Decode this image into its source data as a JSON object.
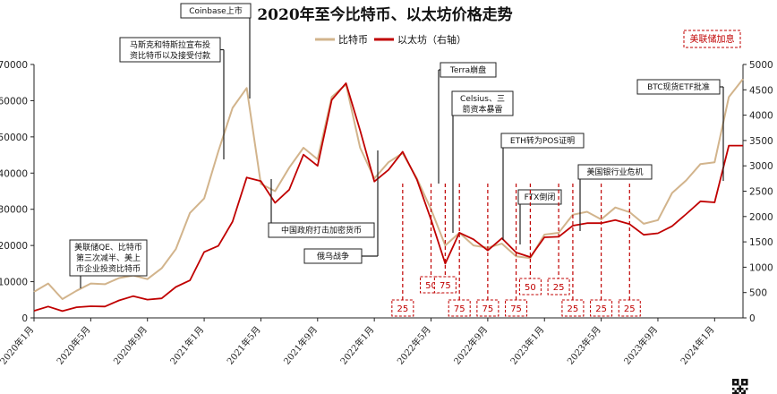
{
  "chart_data": {
    "type": "line",
    "title": "2020年至今比特币、以太坊价格走势",
    "x_range": [
      "2020-01",
      "2024-03"
    ],
    "x_tick_labels": [
      "2020年1月",
      "2020年5月",
      "2020年9月",
      "2021年1月",
      "2021年5月",
      "2021年9月",
      "2022年1月",
      "2022年5月",
      "2022年9月",
      "2023年1月",
      "2023年5月",
      "2023年9月",
      "2024年1月"
    ],
    "y_left": {
      "range": [
        0,
        70000
      ],
      "ticks": [
        0,
        10000,
        20000,
        30000,
        40000,
        50000,
        60000,
        70000
      ]
    },
    "y_right": {
      "range": [
        0,
        5000
      ],
      "ticks": [
        0,
        500,
        1000,
        1500,
        2000,
        2500,
        3000,
        3500,
        4000,
        4500,
        5000
      ]
    },
    "legend": {
      "placement": "top",
      "rate_hike_label": "美联储加息"
    },
    "series": [
      {
        "name": "比特币",
        "axis": "left",
        "color": "#d2b48c",
        "points": [
          [
            "2020-01",
            7200
          ],
          [
            "2020-02",
            9500
          ],
          [
            "2020-03",
            5200
          ],
          [
            "2020-04",
            7500
          ],
          [
            "2020-05",
            9500
          ],
          [
            "2020-06",
            9300
          ],
          [
            "2020-07",
            11000
          ],
          [
            "2020-08",
            11700
          ],
          [
            "2020-09",
            10700
          ],
          [
            "2020-10",
            13700
          ],
          [
            "2020-11",
            19000
          ],
          [
            "2020-12",
            29000
          ],
          [
            "2021-01",
            33000
          ],
          [
            "2021-02",
            46000
          ],
          [
            "2021-03",
            58000
          ],
          [
            "2021-04",
            63500
          ],
          [
            "2021-05",
            37000
          ],
          [
            "2021-06",
            35000
          ],
          [
            "2021-07",
            41500
          ],
          [
            "2021-08",
            47000
          ],
          [
            "2021-09",
            43800
          ],
          [
            "2021-10",
            61000
          ],
          [
            "2021-11",
            64500
          ],
          [
            "2021-12",
            47000
          ],
          [
            "2022-01",
            38500
          ],
          [
            "2022-02",
            43000
          ],
          [
            "2022-03",
            45500
          ],
          [
            "2022-04",
            38500
          ],
          [
            "2022-05",
            30000
          ],
          [
            "2022-06",
            20000
          ],
          [
            "2022-07",
            23500
          ],
          [
            "2022-08",
            20000
          ],
          [
            "2022-09",
            19400
          ],
          [
            "2022-10",
            20500
          ],
          [
            "2022-11",
            17000
          ],
          [
            "2022-12",
            16500
          ],
          [
            "2023-01",
            23000
          ],
          [
            "2023-02",
            23500
          ],
          [
            "2023-03",
            28500
          ],
          [
            "2023-04",
            29300
          ],
          [
            "2023-05",
            27200
          ],
          [
            "2023-06",
            30500
          ],
          [
            "2023-07",
            29200
          ],
          [
            "2023-08",
            26000
          ],
          [
            "2023-09",
            27000
          ],
          [
            "2023-10",
            34500
          ],
          [
            "2023-11",
            38000
          ],
          [
            "2023-12",
            42500
          ],
          [
            "2024-01",
            43000
          ],
          [
            "2024-02",
            61000
          ],
          [
            "2024-03",
            66000
          ]
        ]
      },
      {
        "name": "以太坊（右轴）",
        "axis": "right",
        "color": "#c00000",
        "points": [
          [
            "2020-01",
            140
          ],
          [
            "2020-02",
            225
          ],
          [
            "2020-03",
            135
          ],
          [
            "2020-04",
            210
          ],
          [
            "2020-05",
            230
          ],
          [
            "2020-06",
            225
          ],
          [
            "2020-07",
            345
          ],
          [
            "2020-08",
            430
          ],
          [
            "2020-09",
            360
          ],
          [
            "2020-10",
            385
          ],
          [
            "2020-11",
            610
          ],
          [
            "2020-12",
            740
          ],
          [
            "2021-01",
            1300
          ],
          [
            "2021-02",
            1420
          ],
          [
            "2021-03",
            1900
          ],
          [
            "2021-04",
            2770
          ],
          [
            "2021-05",
            2700
          ],
          [
            "2021-06",
            2270
          ],
          [
            "2021-07",
            2530
          ],
          [
            "2021-08",
            3220
          ],
          [
            "2021-09",
            3000
          ],
          [
            "2021-10",
            4300
          ],
          [
            "2021-11",
            4630
          ],
          [
            "2021-12",
            3700
          ],
          [
            "2022-01",
            2690
          ],
          [
            "2022-02",
            2920
          ],
          [
            "2022-03",
            3280
          ],
          [
            "2022-04",
            2730
          ],
          [
            "2022-05",
            1940
          ],
          [
            "2022-06",
            1070
          ],
          [
            "2022-07",
            1680
          ],
          [
            "2022-08",
            1550
          ],
          [
            "2022-09",
            1330
          ],
          [
            "2022-10",
            1570
          ],
          [
            "2022-11",
            1290
          ],
          [
            "2022-12",
            1200
          ],
          [
            "2023-01",
            1590
          ],
          [
            "2023-02",
            1600
          ],
          [
            "2023-03",
            1820
          ],
          [
            "2023-04",
            1870
          ],
          [
            "2023-05",
            1870
          ],
          [
            "2023-06",
            1930
          ],
          [
            "2023-07",
            1850
          ],
          [
            "2023-08",
            1640
          ],
          [
            "2023-09",
            1670
          ],
          [
            "2023-10",
            1810
          ],
          [
            "2023-11",
            2050
          ],
          [
            "2023-12",
            2300
          ],
          [
            "2024-01",
            2280
          ],
          [
            "2024-02",
            3400
          ],
          [
            "2024-03",
            3400
          ]
        ]
      }
    ],
    "annotations": [
      {
        "name": "ann-fed-qe",
        "lines": [
          "美联储QE、比特币",
          "第三次减半、美上",
          "市企业投资比特币"
        ]
      },
      {
        "name": "ann-musk-tesla",
        "lines": [
          "马斯克和特斯拉宣布投",
          "资比特币以及接受付款"
        ]
      },
      {
        "name": "ann-coinbase",
        "lines": [
          "Coinbase上市"
        ]
      },
      {
        "name": "ann-china-crackdown",
        "lines": [
          "中国政府打击加密货币"
        ]
      },
      {
        "name": "ann-russia-ukraine",
        "lines": [
          "俄乌战争"
        ]
      },
      {
        "name": "ann-terra",
        "lines": [
          "Terra崩盘"
        ]
      },
      {
        "name": "ann-celsius",
        "lines": [
          "Celsius、三",
          "箭资本暴雷"
        ]
      },
      {
        "name": "ann-eth-pos",
        "lines": [
          "ETH转为POS证明"
        ]
      },
      {
        "name": "ann-ftx",
        "lines": [
          "FTX倒闭"
        ]
      },
      {
        "name": "ann-us-banks",
        "lines": [
          "美国银行业危机"
        ]
      },
      {
        "name": "ann-btc-etf",
        "lines": [
          "BTC现货ETF批准"
        ]
      }
    ],
    "rate_hikes": [
      {
        "date": "2022-03",
        "bp": "25"
      },
      {
        "date": "2022-05",
        "bp": "50"
      },
      {
        "date": "2022-06",
        "bp": "75"
      },
      {
        "date": "2022-07",
        "bp": "75"
      },
      {
        "date": "2022-09",
        "bp": "75"
      },
      {
        "date": "2022-11",
        "bp": "75"
      },
      {
        "date": "2022-12",
        "bp": "50"
      },
      {
        "date": "2023-02",
        "bp": "25"
      },
      {
        "date": "2023-03",
        "bp": "25"
      },
      {
        "date": "2023-05",
        "bp": "25"
      },
      {
        "date": "2023-07",
        "bp": "25"
      }
    ]
  }
}
